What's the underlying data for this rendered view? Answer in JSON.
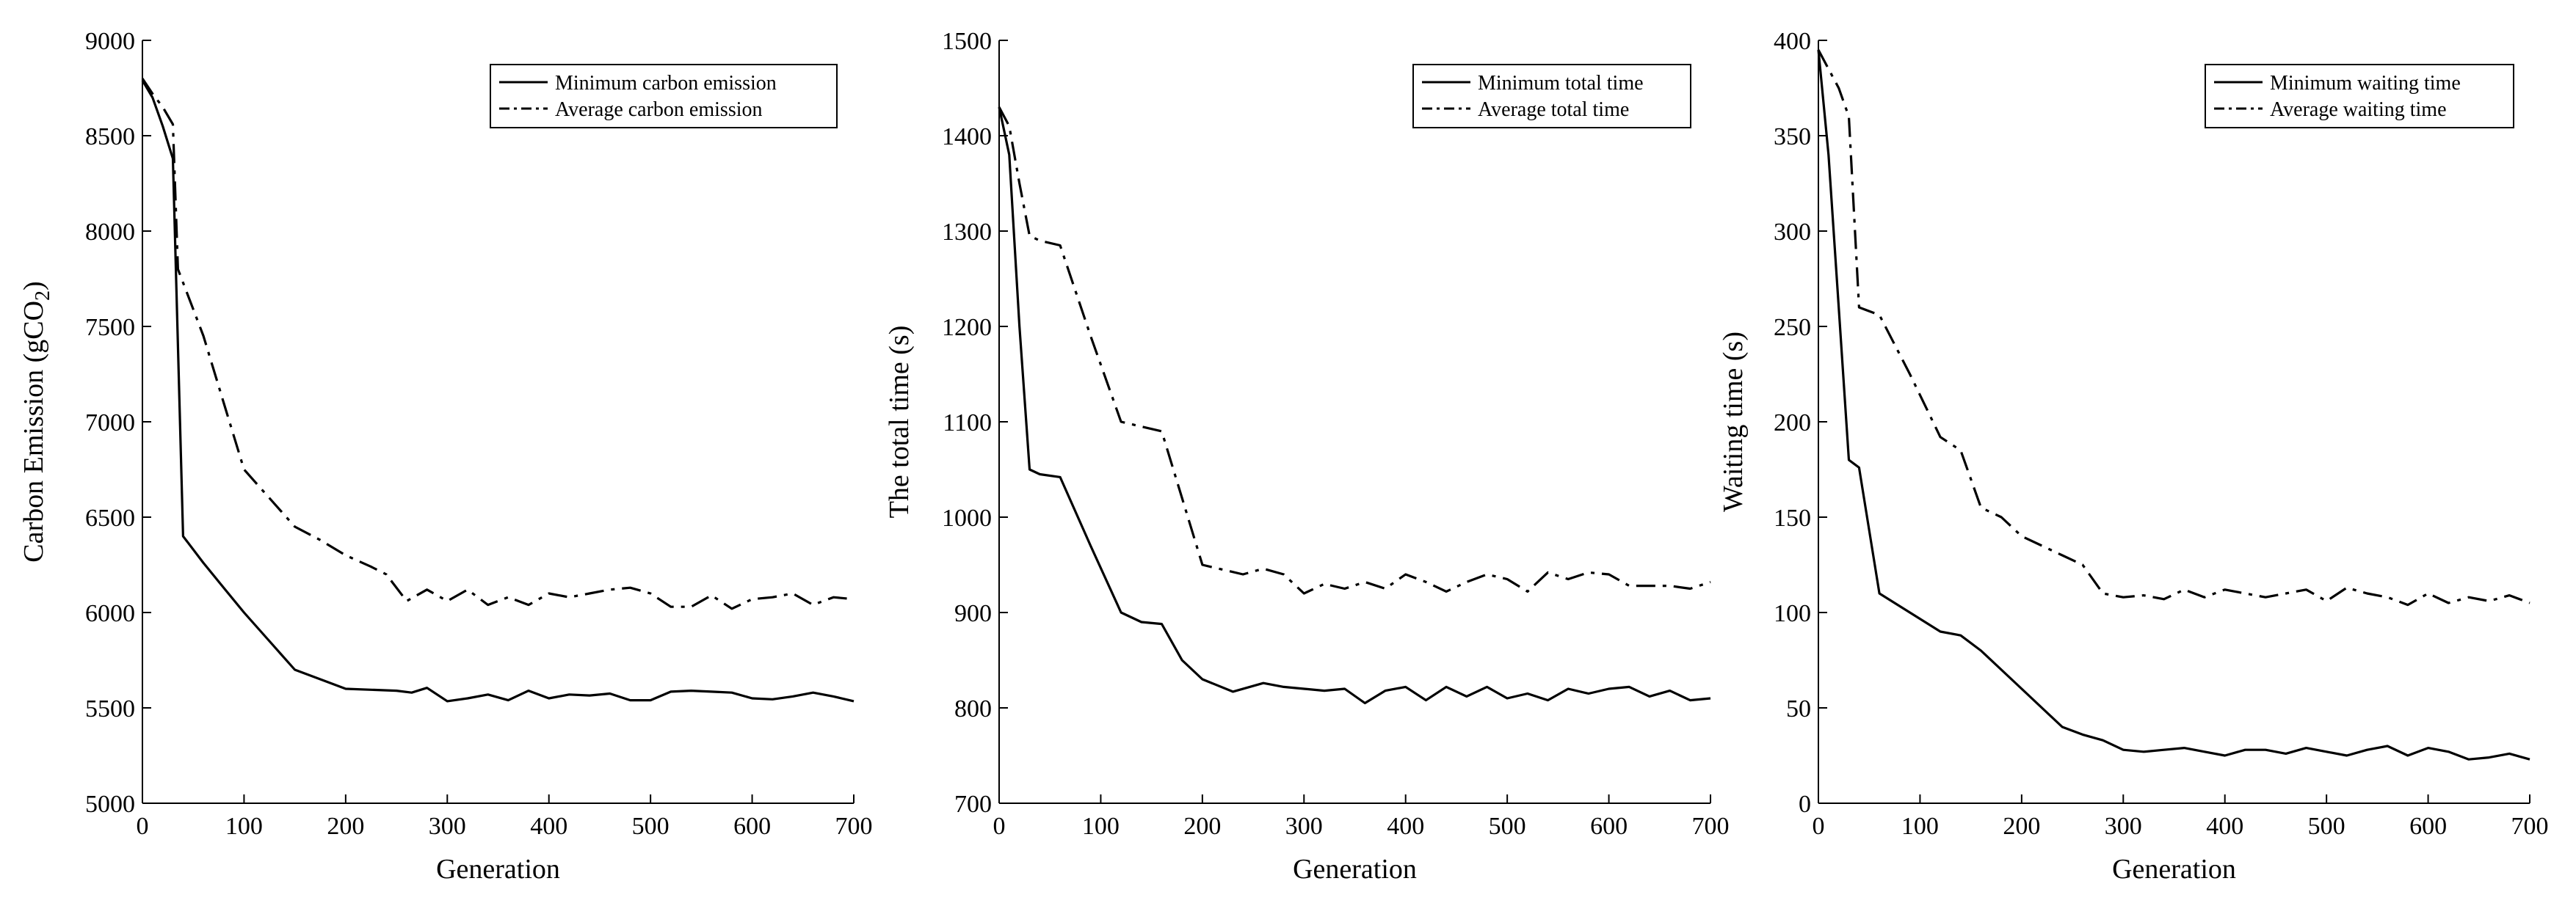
{
  "figure": {
    "colors": {
      "line": "#000000",
      "axis": "#000000",
      "background": "#ffffff"
    }
  },
  "chart_data": [
    {
      "type": "line",
      "title": "",
      "xlabel": "Generation",
      "ylabel": "Carbon Emission (gCO",
      "ylabel_subscript": "2",
      "ylabel_close": ")",
      "xlim": [
        0,
        700
      ],
      "ylim": [
        5000,
        9000
      ],
      "xticks": [
        0,
        100,
        200,
        300,
        400,
        500,
        600,
        700
      ],
      "yticks": [
        5000,
        5500,
        6000,
        6500,
        7000,
        7500,
        8000,
        8500,
        9000
      ],
      "grid": false,
      "legend_position": "top-right",
      "series": [
        {
          "name": "Minimum carbon emission",
          "style": "solid",
          "x": [
            0,
            10,
            20,
            30,
            40,
            60,
            80,
            100,
            125,
            150,
            175,
            200,
            225,
            250,
            265,
            280,
            300,
            320,
            340,
            360,
            380,
            400,
            420,
            440,
            460,
            480,
            500,
            520,
            540,
            560,
            580,
            600,
            620,
            640,
            660,
            680,
            700
          ],
          "values": [
            8790,
            8700,
            8550,
            8380,
            6400,
            6260,
            6130,
            6000,
            5850,
            5700,
            5650,
            5600,
            5595,
            5590,
            5580,
            5605,
            5535,
            5550,
            5570,
            5540,
            5590,
            5550,
            5570,
            5565,
            5575,
            5540,
            5540,
            5585,
            5590,
            5585,
            5580,
            5550,
            5545,
            5560,
            5580,
            5560,
            5535
          ]
        },
        {
          "name": "Average carbon emission",
          "style": "dash-dot",
          "x": [
            0,
            10,
            20,
            30,
            35,
            60,
            80,
            100,
            125,
            150,
            175,
            200,
            225,
            240,
            260,
            280,
            300,
            320,
            340,
            360,
            380,
            400,
            420,
            440,
            460,
            480,
            500,
            520,
            540,
            560,
            580,
            600,
            620,
            640,
            660,
            680,
            700
          ],
          "values": [
            8800,
            8720,
            8650,
            8560,
            7800,
            7450,
            7100,
            6750,
            6600,
            6450,
            6380,
            6300,
            6240,
            6200,
            6060,
            6120,
            6060,
            6120,
            6040,
            6080,
            6040,
            6100,
            6080,
            6100,
            6120,
            6130,
            6100,
            6030,
            6030,
            6090,
            6020,
            6070,
            6080,
            6100,
            6040,
            6080,
            6070
          ]
        }
      ]
    },
    {
      "type": "line",
      "title": "",
      "xlabel": "Generation",
      "ylabel": "The total time (s)",
      "xlim": [
        0,
        700
      ],
      "ylim": [
        700,
        1500
      ],
      "xticks": [
        0,
        100,
        200,
        300,
        400,
        500,
        600,
        700
      ],
      "yticks": [
        700,
        800,
        900,
        1000,
        1100,
        1200,
        1300,
        1400,
        1500
      ],
      "grid": false,
      "legend_position": "top-right",
      "series": [
        {
          "name": "Minimum total time",
          "style": "solid",
          "x": [
            0,
            10,
            20,
            30,
            40,
            60,
            90,
            120,
            140,
            160,
            180,
            200,
            230,
            260,
            280,
            300,
            320,
            340,
            360,
            380,
            400,
            420,
            440,
            460,
            480,
            500,
            520,
            540,
            560,
            580,
            600,
            620,
            640,
            660,
            680,
            700
          ],
          "values": [
            1430,
            1380,
            1200,
            1050,
            1045,
            1042,
            970,
            900,
            890,
            888,
            850,
            830,
            817,
            826,
            822,
            820,
            818,
            820,
            805,
            818,
            822,
            808,
            822,
            812,
            822,
            810,
            815,
            808,
            820,
            815,
            820,
            822,
            812,
            818,
            808,
            810
          ]
        },
        {
          "name": "Average total time",
          "style": "dash-dot",
          "x": [
            0,
            10,
            20,
            30,
            40,
            60,
            90,
            120,
            140,
            160,
            180,
            200,
            220,
            240,
            260,
            280,
            300,
            320,
            340,
            360,
            380,
            400,
            420,
            440,
            460,
            480,
            500,
            520,
            540,
            560,
            580,
            600,
            620,
            640,
            660,
            680,
            700
          ],
          "values": [
            1430,
            1410,
            1350,
            1295,
            1290,
            1285,
            1190,
            1100,
            1095,
            1090,
            1020,
            950,
            945,
            940,
            946,
            940,
            920,
            930,
            925,
            932,
            925,
            940,
            932,
            922,
            932,
            940,
            935,
            922,
            942,
            935,
            942,
            940,
            928,
            928,
            928,
            925,
            932
          ]
        }
      ]
    },
    {
      "type": "line",
      "title": "",
      "xlabel": "Generation",
      "ylabel": "Waiting time (s)",
      "xlim": [
        0,
        700
      ],
      "ylim": [
        0,
        400
      ],
      "xticks": [
        0,
        100,
        200,
        300,
        400,
        500,
        600,
        700
      ],
      "yticks": [
        0,
        50,
        100,
        150,
        200,
        250,
        300,
        350,
        400
      ],
      "grid": false,
      "legend_position": "top-right",
      "series": [
        {
          "name": "Minimum waiting time",
          "style": "solid",
          "x": [
            0,
            10,
            20,
            30,
            40,
            60,
            90,
            120,
            140,
            160,
            200,
            240,
            260,
            280,
            300,
            320,
            340,
            360,
            380,
            400,
            420,
            440,
            460,
            480,
            500,
            520,
            540,
            560,
            580,
            600,
            620,
            640,
            660,
            680,
            700
          ],
          "values": [
            395,
            340,
            260,
            180,
            176,
            110,
            100,
            90,
            88,
            80,
            60,
            40,
            36,
            33,
            28,
            27,
            28,
            29,
            27,
            25,
            28,
            28,
            26,
            29,
            27,
            25,
            28,
            30,
            25,
            29,
            27,
            23,
            24,
            26,
            23
          ]
        },
        {
          "name": "Average waiting time",
          "style": "dash-dot",
          "x": [
            0,
            10,
            20,
            30,
            40,
            60,
            90,
            120,
            140,
            160,
            180,
            200,
            240,
            260,
            280,
            300,
            320,
            340,
            360,
            380,
            400,
            420,
            440,
            460,
            480,
            500,
            520,
            540,
            560,
            580,
            600,
            620,
            640,
            660,
            680,
            700
          ],
          "values": [
            395,
            385,
            375,
            360,
            260,
            256,
            225,
            192,
            185,
            155,
            150,
            140,
            130,
            125,
            110,
            108,
            109,
            107,
            112,
            108,
            112,
            110,
            108,
            110,
            112,
            106,
            113,
            110,
            108,
            104,
            110,
            105,
            108,
            106,
            109,
            105
          ]
        }
      ]
    }
  ]
}
